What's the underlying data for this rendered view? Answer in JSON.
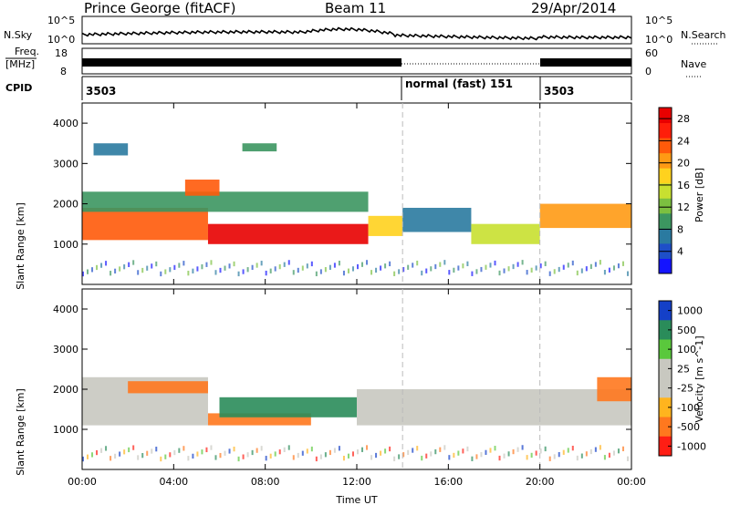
{
  "header": {
    "station": "Prince George (fitACF)",
    "beam": "Beam 11",
    "date": "29/Apr/2014"
  },
  "strip_labels": {
    "nsky": "N.Sky",
    "nsky_ticks": [
      "10^5",
      "10^0"
    ],
    "freq_l1": "Freq.",
    "freq_l2": "[MHz]",
    "freq_ticks": [
      "18",
      "8"
    ],
    "cpid": "CPID",
    "nsearch": "N.Search",
    "nsearch_ticks": [
      "10^5",
      "10^0"
    ],
    "nave": "Nave",
    "nave_ticks": [
      "60",
      "0"
    ],
    "cpid_labels": [
      "3503",
      "normal (fast) 151",
      "3503"
    ]
  },
  "axes": {
    "xlabel": "Time UT",
    "ylabel": "Slant Range [km]",
    "x_ticks": [
      "00:00",
      "04:00",
      "08:00",
      "12:00",
      "16:00",
      "20:00",
      "00:00"
    ],
    "y_ticks": [
      "1000",
      "2000",
      "3000",
      "4000"
    ]
  },
  "power_scale": {
    "label": "Power [dB]",
    "ticks": [
      "4",
      "8",
      "12",
      "16",
      "20",
      "24",
      "28"
    ],
    "colors": [
      "#1414ff",
      "#1e4fc8",
      "#2a7aa0",
      "#3c9660",
      "#7cc040",
      "#c8e030",
      "#ffd21e",
      "#ff9a14",
      "#ff5a0a",
      "#ff1e0a",
      "#e80000"
    ]
  },
  "velocity_scale": {
    "label": "Velocity [m s^-1]",
    "ticks": [
      "1000",
      "500",
      "100",
      "25",
      "-25",
      "-100",
      "-500",
      "-1000"
    ],
    "colors": [
      "#1440c8",
      "#2a8c5a",
      "#5ac83c",
      "#c8c8c0",
      "#c8c8c0",
      "#ffb41e",
      "#ff781e",
      "#ff1e14"
    ]
  },
  "chart_data": [
    {
      "type": "heatmap",
      "name": "Power",
      "x_units": "hours UT",
      "y_units": "km",
      "xlim": [
        0,
        24
      ],
      "ylim": [
        0,
        4500
      ],
      "clim": [
        0,
        30
      ],
      "bands": [
        {
          "x": [
            0,
            5.5
          ],
          "y": [
            1100,
            1900
          ],
          "value": 24
        },
        {
          "x": [
            5.5,
            12.5
          ],
          "y": [
            1000,
            1500
          ],
          "value": 28
        },
        {
          "x": [
            0,
            12.5
          ],
          "y": [
            1800,
            2300
          ],
          "value": 10
        },
        {
          "x": [
            4.5,
            6
          ],
          "y": [
            2200,
            2600
          ],
          "value": 22
        },
        {
          "x": [
            12.5,
            14
          ],
          "y": [
            1200,
            1700
          ],
          "value": 18
        },
        {
          "x": [
            14,
            17
          ],
          "y": [
            1300,
            1900
          ],
          "value": 8
        },
        {
          "x": [
            17,
            20
          ],
          "y": [
            1000,
            1500
          ],
          "value": 16
        },
        {
          "x": [
            20,
            24
          ],
          "y": [
            1400,
            2000
          ],
          "value": 20
        },
        {
          "x": [
            0.5,
            2
          ],
          "y": [
            3200,
            3500
          ],
          "value": 6
        },
        {
          "x": [
            7,
            8.5
          ],
          "y": [
            3300,
            3500
          ],
          "value": 10
        }
      ]
    },
    {
      "type": "heatmap",
      "name": "Velocity",
      "x_units": "hours UT",
      "y_units": "km",
      "xlim": [
        0,
        24
      ],
      "ylim": [
        0,
        4500
      ],
      "clim": [
        -1000,
        1000
      ],
      "bands": [
        {
          "x": [
            0,
            5.5
          ],
          "y": [
            1100,
            2300
          ],
          "value": 0
        },
        {
          "x": [
            2,
            5.5
          ],
          "y": [
            1900,
            2200
          ],
          "value": -300
        },
        {
          "x": [
            5.5,
            10
          ],
          "y": [
            1100,
            1400
          ],
          "value": -300
        },
        {
          "x": [
            6,
            12
          ],
          "y": [
            1300,
            1800
          ],
          "value": 150
        },
        {
          "x": [
            12,
            24
          ],
          "y": [
            1100,
            2000
          ],
          "value": 0
        },
        {
          "x": [
            22.5,
            24
          ],
          "y": [
            1700,
            2300
          ],
          "value": -200
        }
      ]
    }
  ]
}
